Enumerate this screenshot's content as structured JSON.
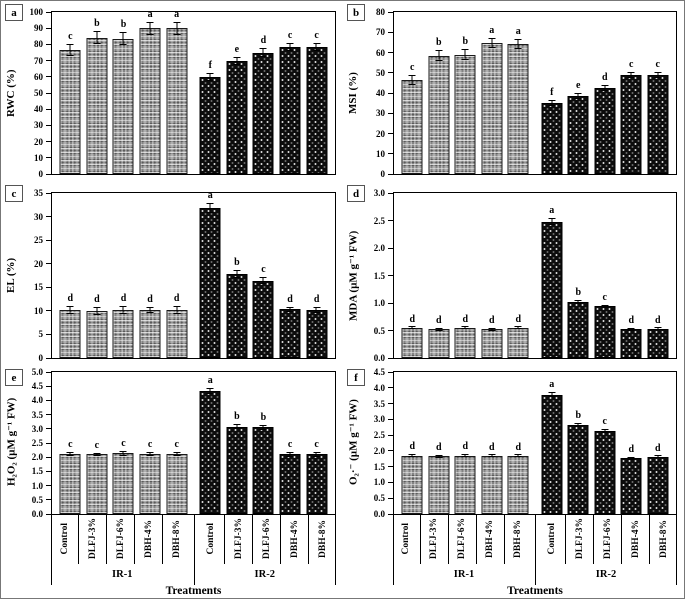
{
  "figure": {
    "x_axis_title": "Treatments",
    "group_labels": [
      "IR-1",
      "IR-2"
    ],
    "categories": [
      "Control",
      "DLFJ-3%",
      "DLFJ-6%",
      "DBH-4%",
      "DBH-8%"
    ],
    "bar_styles": {
      "ir1_fill": "#9a9a9a",
      "ir1_pattern": "gray-checkered",
      "ir2_fill": "#0c0c0c",
      "ir2_pattern": "black-white-dots"
    }
  },
  "chart_data": [
    {
      "id": "a",
      "type": "bar",
      "ylabel": "RWC (%)",
      "ylim": [
        0,
        100
      ],
      "ytick_step": 10,
      "ytick_decimals": 0,
      "categories": [
        "Control",
        "DLFJ-3%",
        "DLFJ-6%",
        "DBH-4%",
        "DBH-8%"
      ],
      "series": [
        {
          "name": "IR-1",
          "values": [
            76.5,
            84,
            83.5,
            90,
            90
          ],
          "errors": [
            3.5,
            4,
            4,
            4,
            4
          ],
          "letters": [
            "c",
            "b",
            "b",
            "a",
            "a"
          ]
        },
        {
          "name": "IR-2",
          "values": [
            60,
            69.5,
            75,
            78.5,
            78.5
          ],
          "errors": [
            2.5,
            2.5,
            2.5,
            2.5,
            2.5
          ],
          "letters": [
            "f",
            "e",
            "d",
            "c",
            "c"
          ]
        }
      ]
    },
    {
      "id": "b",
      "type": "bar",
      "ylabel": "MSI (%)",
      "ylim": [
        0,
        80
      ],
      "ytick_step": 10,
      "ytick_decimals": 0,
      "categories": [
        "Control",
        "DLFJ-3%",
        "DLFJ-6%",
        "DBH-4%",
        "DBH-8%"
      ],
      "series": [
        {
          "name": "IR-1",
          "values": [
            46.5,
            58.5,
            59,
            64.5,
            64
          ],
          "errors": [
            2.5,
            2.5,
            2.5,
            2.5,
            2.5
          ],
          "letters": [
            "c",
            "b",
            "b",
            "a",
            "a"
          ]
        },
        {
          "name": "IR-2",
          "values": [
            35,
            38.5,
            42.5,
            49,
            49
          ],
          "errors": [
            1.5,
            1.5,
            1.5,
            1.5,
            1.5
          ],
          "letters": [
            "f",
            "e",
            "d",
            "c",
            "c"
          ]
        }
      ]
    },
    {
      "id": "c",
      "type": "bar",
      "ylabel": "EL (%)",
      "ylim": [
        0,
        35
      ],
      "ytick_step": 5,
      "ytick_decimals": 0,
      "categories": [
        "Control",
        "DLFJ-3%",
        "DLFJ-6%",
        "DBH-4%",
        "DBH-8%"
      ],
      "series": [
        {
          "name": "IR-1",
          "values": [
            10.2,
            10.0,
            10.2,
            10.2,
            10.2
          ],
          "errors": [
            0.8,
            0.8,
            0.8,
            0.6,
            0.8
          ],
          "letters": [
            "d",
            "d",
            "d",
            "d",
            "d"
          ]
        },
        {
          "name": "IR-2",
          "values": [
            31.8,
            17.8,
            16.4,
            10.3,
            10.2
          ],
          "errors": [
            1.0,
            0.9,
            0.8,
            0.6,
            0.7
          ],
          "letters": [
            "a",
            "b",
            "c",
            "d",
            "d"
          ]
        }
      ]
    },
    {
      "id": "d",
      "type": "bar",
      "ylabel": "MDA (µM g⁻¹ FW)",
      "ylim": [
        0,
        3.0
      ],
      "ytick_step": 0.5,
      "ytick_decimals": 1,
      "categories": [
        "Control",
        "DLFJ-3%",
        "DLFJ-6%",
        "DBH-4%",
        "DBH-8%"
      ],
      "series": [
        {
          "name": "IR-1",
          "values": [
            0.54,
            0.52,
            0.54,
            0.52,
            0.54
          ],
          "errors": [
            0.02,
            0.02,
            0.02,
            0.02,
            0.02
          ],
          "letters": [
            "d",
            "d",
            "d",
            "d",
            "d"
          ]
        },
        {
          "name": "IR-2",
          "values": [
            2.48,
            1.02,
            0.94,
            0.52,
            0.53
          ],
          "errors": [
            0.06,
            0.04,
            0.03,
            0.02,
            0.02
          ],
          "letters": [
            "a",
            "b",
            "c",
            "d",
            "d"
          ]
        }
      ]
    },
    {
      "id": "e",
      "type": "bar",
      "ylabel": "H₂O₂ (µM g⁻¹ FW)",
      "ylim": [
        0,
        5.0
      ],
      "ytick_step": 0.5,
      "ytick_decimals": 1,
      "categories": [
        "Control",
        "DLFJ-3%",
        "DLFJ-6%",
        "DBH-4%",
        "DBH-8%"
      ],
      "series": [
        {
          "name": "IR-1",
          "values": [
            2.12,
            2.1,
            2.14,
            2.12,
            2.12
          ],
          "errors": [
            0.07,
            0.06,
            0.08,
            0.06,
            0.06
          ],
          "letters": [
            "c",
            "c",
            "c",
            "c",
            "c"
          ]
        },
        {
          "name": "IR-2",
          "values": [
            4.32,
            3.08,
            3.05,
            2.1,
            2.1
          ],
          "errors": [
            0.1,
            0.1,
            0.1,
            0.1,
            0.1
          ],
          "letters": [
            "a",
            "b",
            "b",
            "c",
            "c"
          ]
        }
      ]
    },
    {
      "id": "f",
      "type": "bar",
      "ylabel": "O₂·⁻ (µM g⁻¹ FW)",
      "ylim": [
        0,
        4.5
      ],
      "ytick_step": 0.5,
      "ytick_decimals": 1,
      "categories": [
        "Control",
        "DLFJ-3%",
        "DLFJ-6%",
        "DBH-4%",
        "DBH-8%"
      ],
      "series": [
        {
          "name": "IR-1",
          "values": [
            1.85,
            1.83,
            1.85,
            1.83,
            1.83
          ],
          "errors": [
            0.04,
            0.04,
            0.04,
            0.03,
            0.03
          ],
          "letters": [
            "d",
            "d",
            "d",
            "d",
            "d"
          ]
        },
        {
          "name": "IR-2",
          "values": [
            3.78,
            2.82,
            2.63,
            1.77,
            1.8
          ],
          "errors": [
            0.08,
            0.06,
            0.06,
            0.05,
            0.04
          ],
          "letters": [
            "a",
            "b",
            "c",
            "d",
            "d"
          ]
        }
      ]
    }
  ]
}
